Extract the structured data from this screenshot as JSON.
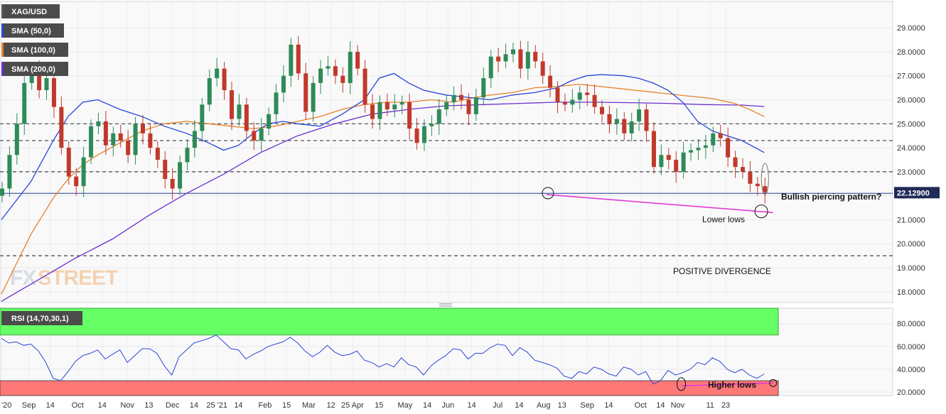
{
  "chart_data": [
    {
      "type": "candlestick",
      "symbol": "XAG/USD",
      "indicators": [
        {
          "name": "SMA (50,0)",
          "color": "#2a45d8"
        },
        {
          "name": "SMA (100,0)",
          "color": "#e8812a"
        },
        {
          "name": "SMA (200,0)",
          "color": "#6a2fd0"
        }
      ],
      "candle_colors": {
        "up": "#2e8b57",
        "down": "#c0392b"
      },
      "ylim": [
        17.55,
        30.1
      ],
      "yticks": [
        "18.0000",
        "19.0000",
        "20.0000",
        "21.0000",
        "22.0000",
        "23.0000",
        "24.0000",
        "25.0000",
        "26.0000",
        "27.0000",
        "28.0000",
        "29.0000"
      ],
      "ytick_values": [
        18,
        19,
        20,
        21,
        22,
        23,
        24,
        25,
        26,
        27,
        28,
        29
      ],
      "last_price": "22.12900",
      "last_price_value": 22.129,
      "horizontal_levels": [
        25.0,
        24.3,
        23.0,
        19.5
      ],
      "support_line": 22.1,
      "trendline": {
        "from": {
          "x": "Aug 6",
          "y": 22.05
        },
        "to": {
          "x": "Sep 30",
          "y": 21.3
        },
        "color": "#e33bd6"
      },
      "annotations": [
        "Bullish piercing pattern?",
        "Lower lows",
        "POSITIVE DIVERGENCE"
      ],
      "sma50_points": [
        [
          0,
          21.0
        ],
        [
          4,
          22.6
        ],
        [
          7,
          24.3
        ],
        [
          9,
          25.3
        ],
        [
          11,
          25.9
        ],
        [
          13,
          26.0
        ],
        [
          16,
          25.6
        ],
        [
          19,
          25.3
        ],
        [
          22,
          24.9
        ],
        [
          25,
          24.6
        ],
        [
          28,
          24.2
        ],
        [
          30,
          23.9
        ],
        [
          32,
          24.1
        ],
        [
          34,
          24.6
        ],
        [
          36,
          25.0
        ],
        [
          38,
          25.1
        ],
        [
          40,
          25.0
        ],
        [
          43,
          24.9
        ],
        [
          46,
          25.4
        ],
        [
          49,
          26.0
        ],
        [
          51,
          26.9
        ],
        [
          53,
          27.1
        ],
        [
          55,
          26.7
        ],
        [
          57,
          26.4
        ],
        [
          60,
          26.2
        ],
        [
          63,
          26.1
        ],
        [
          66,
          26.0
        ],
        [
          69,
          26.2
        ],
        [
          72,
          26.3
        ],
        [
          75,
          26.5
        ],
        [
          77,
          26.8
        ],
        [
          79,
          27.0
        ],
        [
          81,
          27.05
        ],
        [
          84,
          27.0
        ],
        [
          86,
          26.9
        ],
        [
          88,
          26.7
        ],
        [
          90,
          26.4
        ],
        [
          92,
          25.9
        ],
        [
          94,
          25.1
        ],
        [
          96,
          24.7
        ],
        [
          98,
          24.5
        ],
        [
          100,
          24.3
        ],
        [
          103,
          23.8
        ]
      ],
      "sma100_points": [
        [
          0,
          17.9
        ],
        [
          4,
          20.4
        ],
        [
          7,
          21.9
        ],
        [
          9,
          22.7
        ],
        [
          11,
          23.3
        ],
        [
          13,
          23.7
        ],
        [
          16,
          24.2
        ],
        [
          19,
          24.7
        ],
        [
          22,
          25.0
        ],
        [
          25,
          25.1
        ],
        [
          28,
          25.0
        ],
        [
          31,
          24.9
        ],
        [
          34,
          24.8
        ],
        [
          37,
          24.9
        ],
        [
          40,
          25.1
        ],
        [
          43,
          25.3
        ],
        [
          46,
          25.6
        ],
        [
          49,
          25.8
        ],
        [
          52,
          25.9
        ],
        [
          55,
          25.9
        ],
        [
          58,
          26.0
        ],
        [
          61,
          25.9
        ],
        [
          64,
          26.1
        ],
        [
          66,
          26.2
        ],
        [
          69,
          26.3
        ],
        [
          72,
          26.5
        ],
        [
          75,
          26.55
        ],
        [
          78,
          26.65
        ],
        [
          81,
          26.55
        ],
        [
          84,
          26.45
        ],
        [
          87,
          26.35
        ],
        [
          90,
          26.25
        ],
        [
          93,
          26.15
        ],
        [
          96,
          26.05
        ],
        [
          99,
          25.85
        ],
        [
          101,
          25.6
        ],
        [
          103,
          25.3
        ]
      ],
      "sma200_points": [
        [
          0,
          17.6
        ],
        [
          5,
          18.5
        ],
        [
          10,
          19.4
        ],
        [
          15,
          20.2
        ],
        [
          20,
          21.2
        ],
        [
          25,
          22.1
        ],
        [
          30,
          22.9
        ],
        [
          35,
          23.8
        ],
        [
          40,
          24.5
        ],
        [
          45,
          25.0
        ],
        [
          50,
          25.4
        ],
        [
          55,
          25.6
        ],
        [
          60,
          25.75
        ],
        [
          65,
          25.8
        ],
        [
          70,
          25.85
        ],
        [
          75,
          25.9
        ],
        [
          80,
          25.9
        ],
        [
          85,
          25.88
        ],
        [
          90,
          25.85
        ],
        [
          95,
          25.8
        ],
        [
          100,
          25.78
        ],
        [
          103,
          25.72
        ]
      ],
      "candles": [
        22.3,
        23.7,
        25.0,
        26.7,
        27.2,
        26.4,
        26.9,
        25.7,
        24.0,
        22.8,
        22.4,
        23.6,
        24.9,
        25.1,
        24.1,
        24.6,
        24.3,
        23.7,
        25.0,
        24.6,
        24.0,
        23.5,
        22.7,
        22.3,
        23.4,
        24.0,
        24.7,
        25.8,
        26.9,
        27.3,
        26.4,
        25.2,
        25.8,
        24.7,
        24.3,
        24.8,
        25.4,
        26.3,
        27.0,
        28.3,
        27.1,
        25.5,
        26.7,
        27.3,
        27.4,
        27.0,
        26.7,
        28.0,
        27.3,
        25.8,
        25.2,
        25.9,
        25.6,
        25.8,
        25.9,
        24.8,
        24.2,
        24.9,
        25.0,
        25.6,
        25.9,
        26.2,
        26.0,
        25.4,
        26.1,
        26.9,
        27.8,
        27.6,
        27.9,
        28.1,
        27.3,
        28.0,
        27.6,
        27.0,
        26.5,
        25.9,
        25.8,
        26.0,
        26.3,
        26.2,
        25.7,
        25.4,
        25.0,
        25.2,
        24.6,
        25.1,
        25.6,
        24.7,
        23.2,
        23.7,
        23.5,
        23.0,
        23.8,
        23.9,
        24.0,
        24.1,
        24.6,
        24.4,
        23.6,
        23.2,
        23.0,
        22.5,
        22.4,
        22.13
      ],
      "xticks": [
        "'20",
        "Sep",
        "14",
        "Oct",
        "14",
        "Nov",
        "13",
        "Dec",
        "14",
        "25 '21",
        "14",
        "Feb",
        "15",
        "Mar",
        "12",
        "25 Apr",
        "15",
        "May",
        "14",
        "Jun",
        "14",
        "Jul",
        "14",
        "Aug",
        "13",
        "Sep",
        "14",
        "Oct",
        "14",
        "Nov",
        "11",
        "23"
      ],
      "xtick_positions": [
        0,
        3.7,
        6.6,
        10.3,
        13.6,
        17.0,
        19.9,
        23.1,
        26.0,
        29.1,
        32.0,
        35.6,
        38.5,
        41.5,
        44.5,
        47.4,
        51.0,
        54.5,
        57.5,
        60.3,
        63.5,
        67.0,
        69.9,
        73.2,
        75.7,
        79.1,
        82.0,
        86.3,
        89.0,
        91.3,
        95.7,
        97.8
      ]
    },
    {
      "type": "line",
      "indicator": "RSI (14,70,30,1)",
      "color": "#2a45d8",
      "ylim": [
        17.0,
        93.5
      ],
      "yticks": [
        "20.0000",
        "40.0000",
        "60.0000",
        "80.0000"
      ],
      "ytick_values": [
        20,
        40,
        60,
        80
      ],
      "overbought": 70,
      "oversold": 30,
      "trendline": {
        "from": {
          "x": "Aug 9",
          "y": 25.5
        },
        "to": {
          "x": "Sep 30",
          "y": 28.0
        },
        "color": "#e33bd6"
      },
      "annotations": [
        "Higher lows"
      ],
      "values": [
        67,
        63,
        64,
        61,
        62,
        56,
        46,
        32,
        30,
        38,
        47,
        52,
        54,
        57,
        49,
        53,
        57,
        46,
        52,
        58,
        58,
        54,
        43,
        35,
        51,
        57,
        63,
        65,
        67,
        70,
        64,
        58,
        57,
        49,
        53,
        56,
        60,
        62,
        64,
        68,
        63,
        56,
        51,
        55,
        61,
        55,
        52,
        53,
        56,
        48,
        46,
        42,
        45,
        42,
        50,
        44,
        42,
        35,
        43,
        48,
        52,
        58,
        57,
        49,
        54,
        54,
        59,
        62,
        61,
        52,
        59,
        55,
        48,
        46,
        44,
        41,
        34,
        32,
        38,
        36,
        42,
        40,
        36,
        34,
        42,
        40,
        35,
        38,
        27,
        30,
        39,
        35,
        37,
        40,
        46,
        44,
        50,
        47,
        40,
        37,
        40,
        35,
        32,
        36
      ]
    }
  ],
  "logo": {
    "fx": "FX",
    "street": "STREET"
  }
}
